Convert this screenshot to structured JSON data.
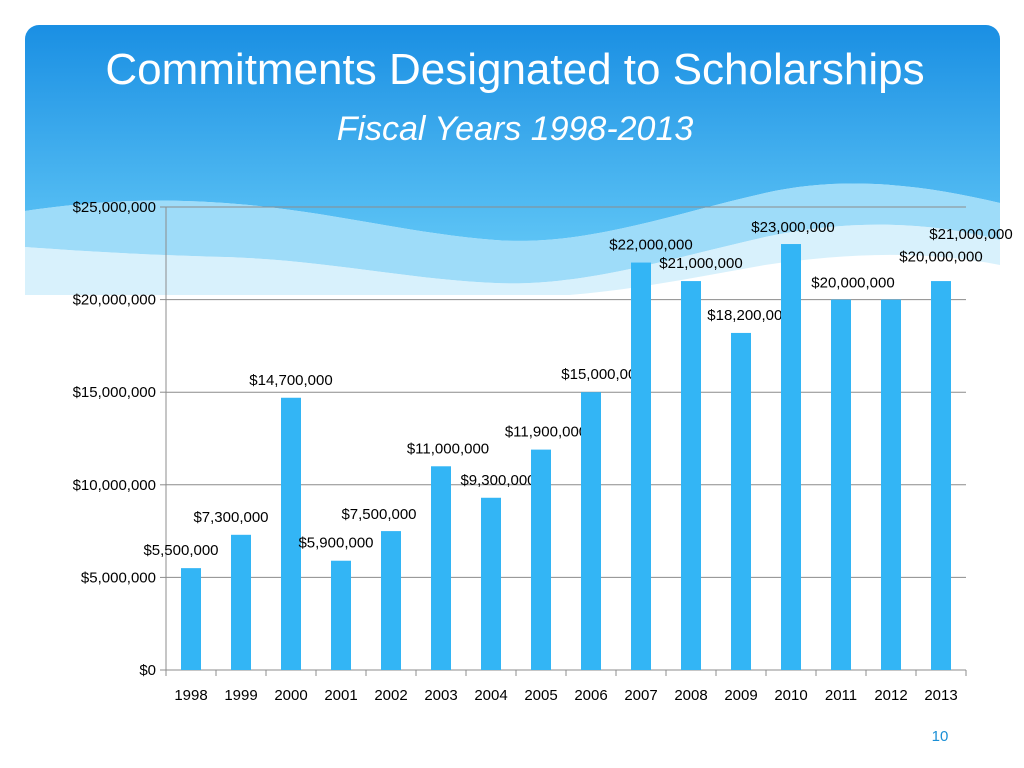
{
  "slide": {
    "title": "Commitments Designated to Scholarships",
    "subtitle": "Fiscal Years 1998-2013",
    "page_number": "10"
  },
  "colors": {
    "bar": "#33b5f5",
    "header_dark": "#1a8fe3",
    "header_light": "#7dd0f7",
    "gridline": "#8c8c8c",
    "page_number": "#1a8fd6"
  },
  "chart_data": {
    "type": "bar",
    "categories": [
      "1998",
      "1999",
      "2000",
      "2001",
      "2002",
      "2003",
      "2004",
      "2005",
      "2006",
      "2007",
      "2008",
      "2009",
      "2010",
      "2011",
      "2012",
      "2013"
    ],
    "values": [
      5500000,
      7300000,
      14700000,
      5900000,
      7500000,
      11000000,
      9300000,
      11900000,
      15000000,
      22000000,
      21000000,
      18200000,
      23000000,
      20000000,
      20000000,
      21000000
    ],
    "data_labels": [
      "$5,500,000",
      "$7,300,000",
      "$14,700,000",
      "$5,900,000",
      "$7,500,000",
      "$11,000,000",
      "$9,300,000",
      "$11,900,000",
      "$15,000,000",
      "$22,000,000",
      "$21,000,000",
      "$18,200,000",
      "$23,000,000",
      "$20,000,000",
      "$20,000,000",
      "$21,000,000"
    ],
    "ylim": [
      0,
      25000000
    ],
    "yticks": [
      0,
      5000000,
      10000000,
      15000000,
      20000000,
      25000000
    ],
    "ytick_labels": [
      "$0",
      "$5,000,000",
      "$10,000,000",
      "$15,000,000",
      "$20,000,000",
      "$25,000,000"
    ],
    "grid": true,
    "legend": "none",
    "xlabel": "",
    "ylabel": ""
  }
}
